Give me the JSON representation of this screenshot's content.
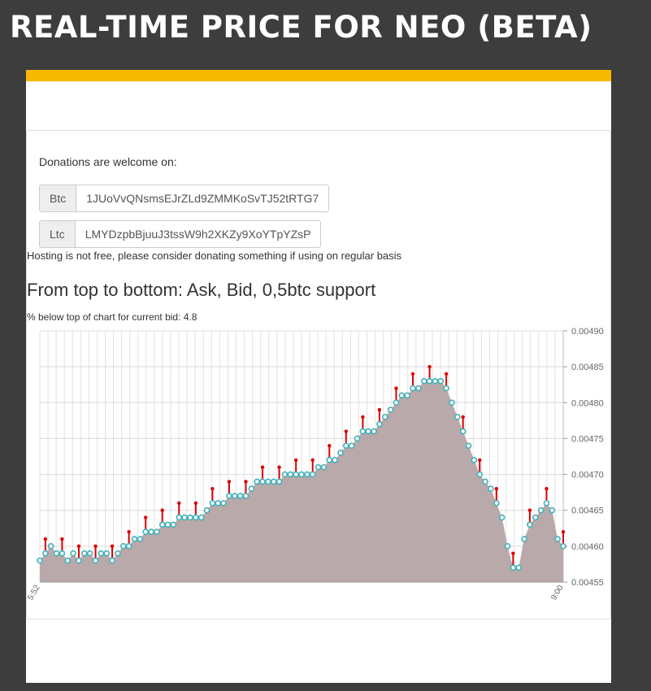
{
  "page": {
    "title": "REAL-TIME PRICE FOR NEO (BETA)"
  },
  "colors": {
    "accent": "#f7b800",
    "background": "#3d3d3d",
    "area": "#b9a9aa",
    "ask": "#dd0000",
    "bid": "#40b0b8"
  },
  "donations": {
    "text": "Donations are welcome on:",
    "btc_label": "Btc",
    "btc_address": "1JUoVvQNsmsEJrZLd9ZMMKoSvTJ52tRTG7",
    "ltc_label": "Ltc",
    "ltc_address": "LMYDzpbBjuuJ3tssW9h2XKZy9XoYTpYZsP"
  },
  "hosting_text": "Hosting is not free, please consider donating something if using on regular basis",
  "chart_heading": "From top to bottom: Ask, Bid, 0,5btc support",
  "percent_text": "% below top of chart for current bid: 4.8",
  "chart_data": {
    "type": "area",
    "y_ticks": [
      "0.00490",
      "0.00485",
      "0.00480",
      "0.00475",
      "0.00470",
      "0.00465",
      "0.00460",
      "0.00455"
    ],
    "ylim": [
      0.00455,
      0.0049
    ],
    "grid": true,
    "x_tick_first": "5:52",
    "x_tick_last": "9:00",
    "series": [
      {
        "values": [
          0.00458,
          0.00459,
          0.0046,
          0.00459,
          0.00459,
          0.00458,
          0.00459,
          0.00458,
          0.00459,
          0.00459,
          0.00458,
          0.00459,
          0.00459,
          0.00458,
          0.00459,
          0.0046,
          0.0046,
          0.00461,
          0.00461,
          0.00462,
          0.00462,
          0.00462,
          0.00463,
          0.00463,
          0.00463,
          0.00464,
          0.00464,
          0.00464,
          0.00464,
          0.00464,
          0.00465,
          0.00466,
          0.00466,
          0.00466,
          0.00467,
          0.00467,
          0.00467,
          0.00467,
          0.00468,
          0.00469,
          0.00469,
          0.00469,
          0.00469,
          0.00469,
          0.0047,
          0.0047,
          0.0047,
          0.0047,
          0.0047,
          0.0047,
          0.00471,
          0.00471,
          0.00472,
          0.00472,
          0.00473,
          0.00474,
          0.00474,
          0.00475,
          0.00476,
          0.00476,
          0.00476,
          0.00477,
          0.00478,
          0.00479,
          0.0048,
          0.00481,
          0.00481,
          0.00482,
          0.00482,
          0.00483,
          0.00483,
          0.00483,
          0.00483,
          0.00482,
          0.0048,
          0.00478,
          0.00476,
          0.00474,
          0.00472,
          0.0047,
          0.00469,
          0.00468,
          0.00466,
          0.00464,
          0.0046,
          0.00457,
          0.00457,
          0.00461,
          0.00463,
          0.00464,
          0.00465,
          0.00466,
          0.00465,
          0.00461,
          0.0046
        ]
      }
    ]
  }
}
